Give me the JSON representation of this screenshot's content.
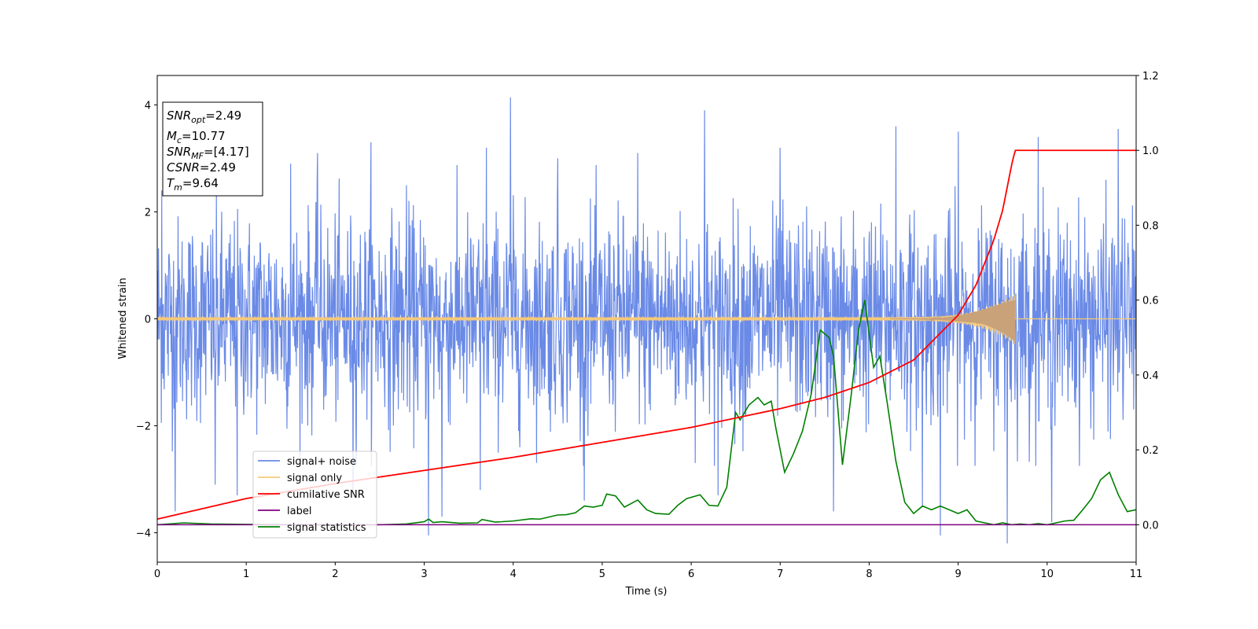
{
  "chart_data": {
    "type": "line",
    "xlabel": "Time (s)",
    "ylabel": "Whitened strain",
    "xlim": [
      0,
      11
    ],
    "ylim": [
      -4.55,
      4.55
    ],
    "y2lim": [
      -0.1,
      1.2
    ],
    "xticks": [
      "0",
      "1",
      "2",
      "3",
      "4",
      "5",
      "6",
      "7",
      "8",
      "9",
      "10",
      "11"
    ],
    "yticks": [
      "4",
      "2",
      "0",
      "−2",
      "−4"
    ],
    "y2ticks": [
      "1.2",
      "1.0",
      "0.8",
      "0.6",
      "0.4",
      "0.2",
      "0.0"
    ],
    "grid": false,
    "legend_position": "lower-left",
    "colors": {
      "signal_noise": "#6a8ae6",
      "signal_only": "#f5c97a",
      "signal_only_merger": "#c9a27a",
      "cumulative_snr": "#ff0000",
      "label": "#800080",
      "signal_statistics": "#008000"
    },
    "series": [
      {
        "name": "signal+ noise",
        "axis": "left",
        "envelope_typical": [
          -2.2,
          2.3
        ],
        "spikes": [
          [
            0.05,
            2.4
          ],
          [
            0.2,
            -3.6
          ],
          [
            0.65,
            -3.1
          ],
          [
            0.9,
            -3.3
          ],
          [
            1.5,
            2.9
          ],
          [
            1.8,
            3.1
          ],
          [
            2.4,
            3.3
          ],
          [
            2.2,
            -3.2
          ],
          [
            2.8,
            2.5
          ],
          [
            3.05,
            -4.05
          ],
          [
            3.2,
            -3.7
          ],
          [
            3.7,
            3.2
          ],
          [
            3.63,
            -3.2
          ],
          [
            3.97,
            4.14
          ],
          [
            4.5,
            3.0
          ],
          [
            4.8,
            -3.4
          ],
          [
            5.4,
            3.1
          ],
          [
            6.15,
            3.9
          ],
          [
            6.3,
            -3.3
          ],
          [
            7.0,
            3.2
          ],
          [
            7.6,
            -3.6
          ],
          [
            8.3,
            3.6
          ],
          [
            8.6,
            -3.5
          ],
          [
            8.8,
            -4.05
          ],
          [
            9.0,
            3.5
          ],
          [
            9.55,
            -4.2
          ],
          [
            9.9,
            3.4
          ],
          [
            10.05,
            -3.8
          ],
          [
            10.8,
            3.55
          ]
        ]
      },
      {
        "name": "signal only",
        "axis": "left",
        "t_merger": 9.64,
        "peak_amplitude": 0.45
      },
      {
        "name": "cumilative SNR",
        "axis": "right",
        "x": [
          0,
          1,
          2,
          3,
          4,
          5,
          6,
          7,
          7.5,
          8,
          8.5,
          9,
          9.2,
          9.4,
          9.5,
          9.6,
          9.64,
          11
        ],
        "y": [
          0.015,
          0.07,
          0.11,
          0.145,
          0.18,
          0.22,
          0.26,
          0.31,
          0.34,
          0.38,
          0.44,
          0.56,
          0.64,
          0.76,
          0.84,
          0.96,
          1.0,
          1.0
        ]
      },
      {
        "name": "label",
        "axis": "right",
        "x": [
          0,
          11
        ],
        "y": [
          0,
          0
        ]
      },
      {
        "name": "signal statistics",
        "axis": "right",
        "x": [
          0,
          0.3,
          0.6,
          1,
          1.5,
          2,
          2.5,
          2.8,
          3.0,
          3.05,
          3.1,
          3.2,
          3.4,
          3.6,
          3.65,
          3.8,
          4.0,
          4.2,
          4.3,
          4.5,
          4.6,
          4.7,
          4.8,
          4.9,
          5.0,
          5.05,
          5.15,
          5.25,
          5.4,
          5.5,
          5.6,
          5.75,
          5.85,
          5.95,
          6.1,
          6.2,
          6.3,
          6.4,
          6.5,
          6.55,
          6.65,
          6.75,
          6.82,
          6.9,
          6.95,
          7.05,
          7.15,
          7.25,
          7.35,
          7.45,
          7.55,
          7.6,
          7.7,
          7.8,
          7.88,
          7.95,
          8.05,
          8.12,
          8.2,
          8.3,
          8.4,
          8.5,
          8.6,
          8.7,
          8.8,
          8.9,
          9.0,
          9.1,
          9.2,
          9.3,
          9.4,
          9.5,
          9.6,
          9.7,
          9.8,
          9.9,
          10.0,
          10.1,
          10.2,
          10.3,
          10.4,
          10.5,
          10.6,
          10.7,
          10.8,
          10.9,
          11.0
        ],
        "y": [
          0.0,
          0.005,
          0.002,
          0.001,
          0.0,
          0.0,
          0.0,
          0.002,
          0.008,
          0.015,
          0.006,
          0.008,
          0.004,
          0.005,
          0.014,
          0.007,
          0.01,
          0.016,
          0.015,
          0.026,
          0.027,
          0.032,
          0.05,
          0.047,
          0.052,
          0.082,
          0.077,
          0.047,
          0.066,
          0.04,
          0.03,
          0.028,
          0.052,
          0.07,
          0.08,
          0.052,
          0.05,
          0.1,
          0.3,
          0.28,
          0.32,
          0.34,
          0.32,
          0.33,
          0.26,
          0.14,
          0.19,
          0.25,
          0.35,
          0.52,
          0.5,
          0.45,
          0.16,
          0.35,
          0.52,
          0.6,
          0.42,
          0.45,
          0.33,
          0.17,
          0.06,
          0.03,
          0.05,
          0.04,
          0.05,
          0.04,
          0.03,
          0.04,
          0.01,
          0.005,
          0.0,
          0.005,
          0.0,
          0.002,
          0.0,
          0.003,
          0.0,
          0.005,
          0.01,
          0.012,
          0.04,
          0.07,
          0.12,
          0.14,
          0.08,
          0.035,
          0.04
        ]
      }
    ],
    "legend": [
      "signal+ noise",
      "signal only",
      "cumilative SNR",
      "label",
      "signal statistics"
    ],
    "annotations": {
      "snr_opt": {
        "base": "SNR",
        "sub": "opt",
        "value": "=2.49"
      },
      "mc": {
        "base": "M",
        "sub": "c",
        "value": "=10.77"
      },
      "snr_mf": {
        "base": "SNR",
        "sub": "MF",
        "value": "=[4.17]"
      },
      "csnr": {
        "base": "CSNR",
        "sub": "",
        "value": "=2.49"
      },
      "tm": {
        "base": "T",
        "sub": "m",
        "value": "=9.64"
      }
    }
  }
}
